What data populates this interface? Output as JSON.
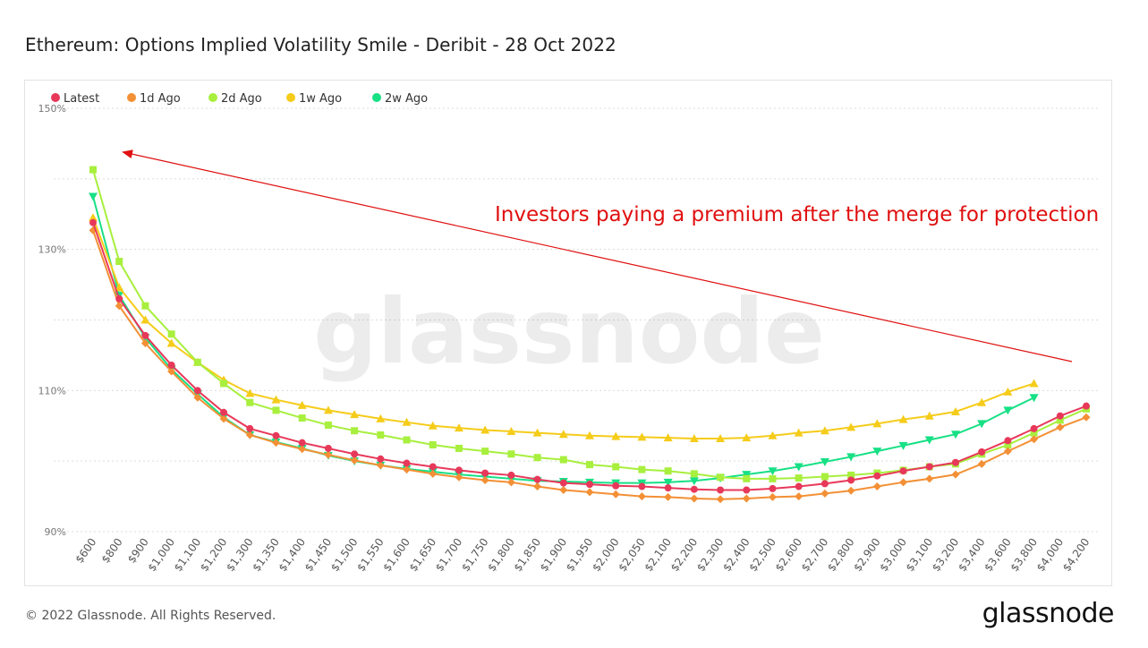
{
  "title": "Ethereum: Options Implied Volatility Smile - Deribit - 28 Oct 2022",
  "footer": {
    "copyright": "© 2022 Glassnode. All Rights Reserved.",
    "logo": "glassnode"
  },
  "watermark": "glassnode",
  "chart_data": {
    "type": "line",
    "title": "Ethereum: Options Implied Volatility Smile - Deribit - 28 Oct 2022",
    "xlabel": "",
    "ylabel": "",
    "ylim": [
      88,
      150
    ],
    "yticks": [
      "90%",
      "110%",
      "130%",
      "150%"
    ],
    "ytick_values": [
      90,
      110,
      130,
      150
    ],
    "grid": true,
    "legend_placement": "top-left",
    "categories": [
      "$600",
      "$800",
      "$900",
      "$1,000",
      "$1,100",
      "$1,200",
      "$1,300",
      "$1,350",
      "$1,400",
      "$1,450",
      "$1,500",
      "$1,550",
      "$1,600",
      "$1,650",
      "$1,700",
      "$1,750",
      "$1,800",
      "$1,850",
      "$1,900",
      "$1,950",
      "$2,000",
      "$2,050",
      "$2,100",
      "$2,200",
      "$2,300",
      "$2,400",
      "$2,500",
      "$2,600",
      "$2,700",
      "$2,800",
      "$2,900",
      "$3,000",
      "$3,100",
      "$3,200",
      "$3,400",
      "$3,600",
      "$3,800",
      "$4,000",
      "$4,200"
    ],
    "series": [
      {
        "name": "Latest",
        "color": "#e8385a",
        "marker": "circle",
        "values": [
          133.8,
          123.0,
          117.8,
          113.6,
          110.0,
          106.9,
          104.6,
          103.6,
          102.6,
          101.8,
          101.0,
          100.3,
          99.7,
          99.2,
          98.7,
          98.3,
          98.0,
          97.4,
          96.9,
          96.7,
          96.5,
          96.4,
          96.2,
          96.0,
          95.9,
          95.9,
          96.1,
          96.4,
          96.8,
          97.3,
          97.9,
          98.6,
          99.2,
          99.8,
          101.3,
          102.9,
          104.6,
          106.4,
          107.8
        ]
      },
      {
        "name": "1d Ago",
        "color": "#f39035",
        "marker": "diamond",
        "values": [
          132.7,
          122.0,
          116.7,
          112.7,
          109.0,
          106.0,
          103.7,
          102.6,
          101.7,
          100.9,
          100.1,
          99.4,
          98.8,
          98.2,
          97.7,
          97.3,
          97.0,
          96.4,
          95.9,
          95.6,
          95.3,
          95.0,
          94.9,
          94.7,
          94.6,
          94.7,
          94.9,
          95.0,
          95.4,
          95.8,
          96.4,
          97.0,
          97.5,
          98.1,
          99.6,
          101.4,
          103.1,
          104.8,
          106.2
        ]
      },
      {
        "name": "2d Ago",
        "color": "#a8ef3e",
        "marker": "square",
        "values": [
          141.3,
          128.3,
          122.0,
          118.0,
          114.0,
          111.0,
          108.3,
          107.2,
          106.1,
          105.1,
          104.3,
          103.7,
          103.0,
          102.3,
          101.8,
          101.4,
          101.0,
          100.5,
          100.2,
          99.5,
          99.2,
          98.8,
          98.6,
          98.2,
          97.7,
          97.5,
          97.5,
          97.6,
          97.8,
          98.0,
          98.3,
          98.7,
          99.2,
          99.6,
          101.0,
          102.3,
          104.0,
          105.8,
          107.4
        ]
      },
      {
        "name": "1w Ago",
        "color": "#f5cc1a",
        "marker": "triangle-up",
        "values": [
          134.5,
          124.6,
          120.0,
          116.7,
          114.0,
          111.5,
          109.6,
          108.7,
          107.9,
          107.2,
          106.6,
          106.0,
          105.5,
          105.0,
          104.7,
          104.4,
          104.2,
          104.0,
          103.8,
          103.6,
          103.5,
          103.4,
          103.3,
          103.2,
          103.2,
          103.3,
          103.6,
          104.0,
          104.3,
          104.8,
          105.3,
          105.9,
          106.4,
          107.0,
          108.3,
          109.8,
          111.0,
          null,
          null
        ]
      },
      {
        "name": "2w Ago",
        "color": "#17e085",
        "marker": "triangle-down",
        "values": [
          137.5,
          123.5,
          117.5,
          113.0,
          109.5,
          106.2,
          103.7,
          102.7,
          101.8,
          100.8,
          100.0,
          99.4,
          98.9,
          98.5,
          98.1,
          97.8,
          97.5,
          97.2,
          97.1,
          97.0,
          96.9,
          96.9,
          97.0,
          97.2,
          97.6,
          98.1,
          98.6,
          99.2,
          99.9,
          100.6,
          101.4,
          102.2,
          103.0,
          103.8,
          105.3,
          107.2,
          109.0,
          null,
          null
        ]
      }
    ],
    "annotations": [
      {
        "text": "Investors paying a premium after the merge for protection",
        "color": "#e01010"
      }
    ]
  }
}
